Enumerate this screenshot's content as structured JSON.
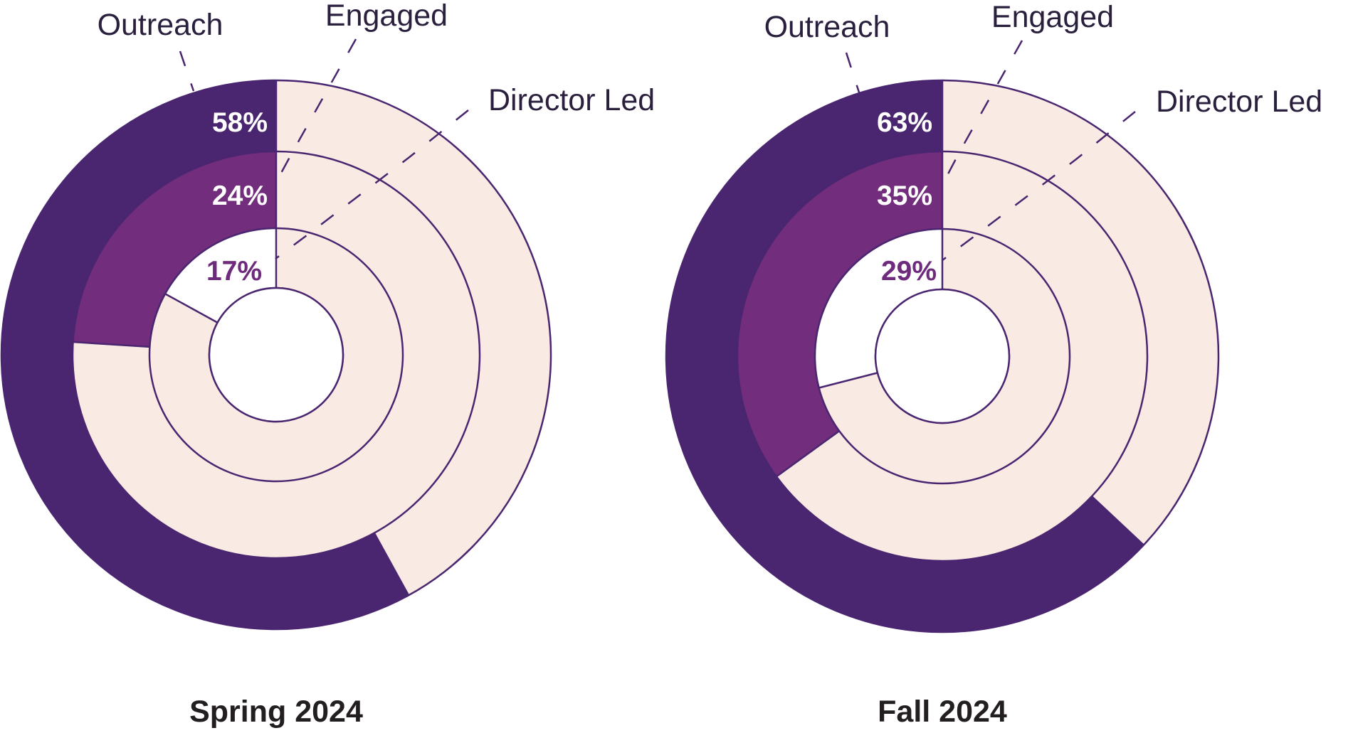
{
  "colors": {
    "background": "#ffffff",
    "remainder": "#f9eae4",
    "outline": "#4a2570",
    "label_text": "#2a1f3d",
    "light_label_text": "#ffffff",
    "dark_label_text": "#6e2a7c"
  },
  "chart_data": [
    {
      "type": "donut",
      "title": "Spring 2024",
      "series": [
        {
          "name": "Outreach",
          "value": 58,
          "label": "58%",
          "color": "#4a2570"
        },
        {
          "name": "Engaged",
          "value": 24,
          "label": "24%",
          "color": "#722d7c"
        },
        {
          "name": "Director Led",
          "value": 17,
          "label": "17%",
          "color": "#ffffff"
        }
      ]
    },
    {
      "type": "donut",
      "title": "Fall 2024",
      "series": [
        {
          "name": "Outreach",
          "value": 63,
          "label": "63%",
          "color": "#4a2570"
        },
        {
          "name": "Engaged",
          "value": 35,
          "label": "35%",
          "color": "#722d7c"
        },
        {
          "name": "Director Led",
          "value": 29,
          "label": "29%",
          "color": "#ffffff"
        }
      ]
    }
  ]
}
